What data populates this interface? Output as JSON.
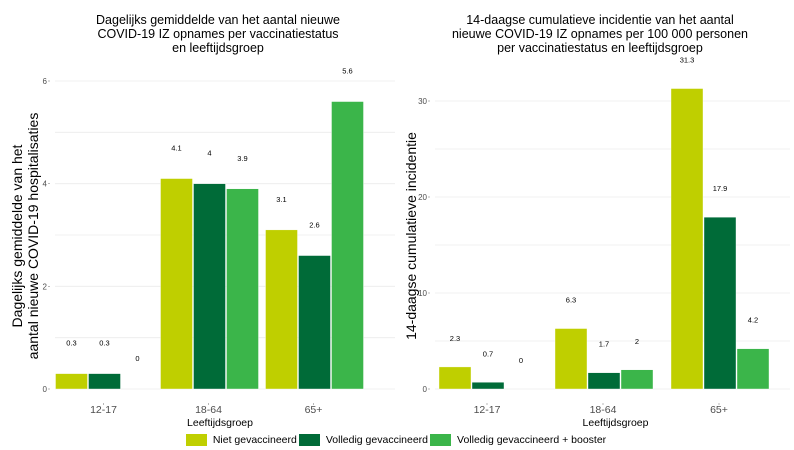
{
  "colors": {
    "Niet gevaccineerd": "#bfcf00",
    "Volledig gevaccineerd": "#006b38",
    "Volledig gevaccineerd + booster": "#3bb54a"
  },
  "legend": {
    "items": [
      {
        "label": "Niet gevaccineerd",
        "color": "#bfcf00"
      },
      {
        "label": "Volledig gevaccineerd",
        "color": "#006b38"
      },
      {
        "label": "Volledig gevaccineerd + booster",
        "color": "#3bb54a"
      }
    ],
    "position": "bottom"
  },
  "chart_data": [
    {
      "type": "bar",
      "title": [
        "Dagelijks gemiddelde van het aantal nieuwe",
        "COVID-19 IZ opnames per vaccinatiestatus",
        "en leeftijdsgroep"
      ],
      "xlabel": "Leeftijdsgroep",
      "ylabel": [
        "Dagelijks gemiddelde van het",
        "aantal nieuwe COVID-19 hospitalisaties"
      ],
      "categories": [
        "12-17",
        "18-64",
        "65+"
      ],
      "yticks": [
        0,
        2,
        4,
        6
      ],
      "ylim": [
        0,
        6.1
      ],
      "grid": true,
      "series": [
        {
          "name": "Niet gevaccineerd",
          "values": [
            0.3,
            4.1,
            3.1
          ],
          "labels": [
            "0.3",
            "4.1",
            "3.1"
          ]
        },
        {
          "name": "Volledig gevaccineerd",
          "values": [
            0.3,
            4,
            2.6
          ],
          "labels": [
            "0.3",
            "4",
            "2.6"
          ]
        },
        {
          "name": "Volledig gevaccineerd + booster",
          "values": [
            0,
            3.9,
            5.6
          ],
          "labels": [
            "0",
            "3.9",
            "5.6"
          ]
        }
      ]
    },
    {
      "type": "bar",
      "title": [
        "14-daagse cumulatieve incidentie van het aantal",
        "nieuwe COVID-19 IZ opnames per 100 000 personen",
        "per vaccinatiestatus en leeftijdsgroep"
      ],
      "xlabel": "Leeftijdsgroep",
      "ylabel": [
        "14-daagse cumulatieve incidentie"
      ],
      "categories": [
        "12-17",
        "18-64",
        "65+"
      ],
      "yticks": [
        0,
        10,
        20,
        30
      ],
      "ylim": [
        0,
        31.5
      ],
      "grid": true,
      "series": [
        {
          "name": "Niet gevaccineerd",
          "values": [
            2.3,
            6.3,
            31.3
          ],
          "labels": [
            "2.3",
            "6.3",
            "31.3"
          ]
        },
        {
          "name": "Volledig gevaccineerd",
          "values": [
            0.7,
            1.7,
            17.9
          ],
          "labels": [
            "0.7",
            "1.7",
            "17.9"
          ]
        },
        {
          "name": "Volledig gevaccineerd + booster",
          "values": [
            0,
            2,
            4.2
          ],
          "labels": [
            "0",
            "2",
            "4.2"
          ]
        }
      ]
    }
  ]
}
